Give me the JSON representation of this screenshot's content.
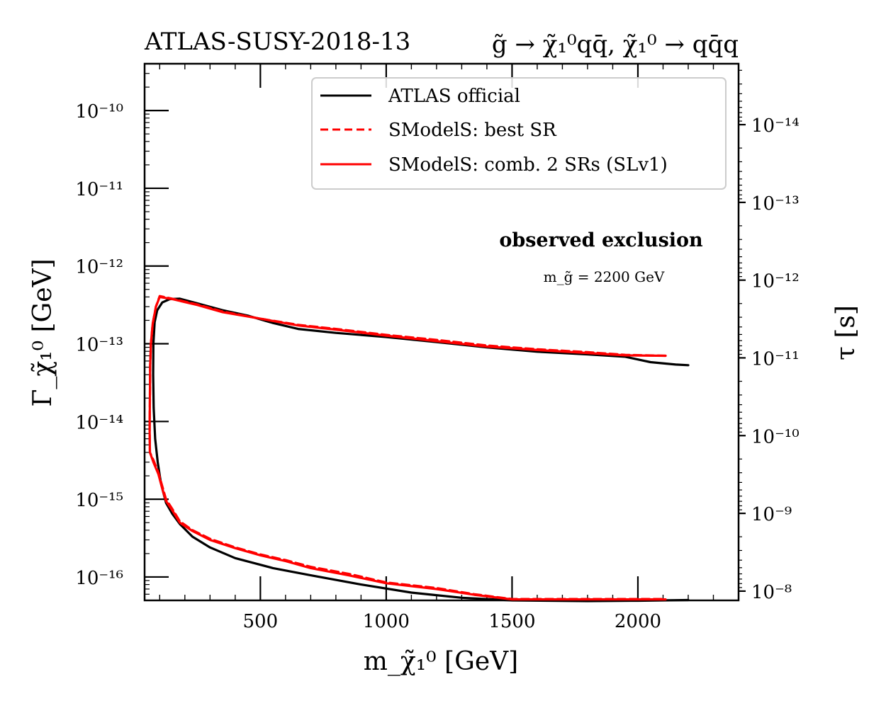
{
  "chart_data": {
    "type": "line",
    "title_left": "ATLAS-SUSY-2018-13",
    "title_right": "g̃ → χ̃₁⁰qq̄, χ̃₁⁰ → qq̄q",
    "xlabel": "m_χ̃₁⁰ [GeV]",
    "ylabel": "Γ_χ̃₁⁰ [GeV]",
    "ylabel_right": "τ [s]",
    "xlim": [
      40,
      2400
    ],
    "ylim": [
      5e-17,
      4e-10
    ],
    "yscale": "log",
    "x_ticks": [
      500,
      1000,
      1500,
      2000
    ],
    "x_tick_labels": [
      "500",
      "1000",
      "1500",
      "2000"
    ],
    "y_ticks_left": [
      1e-16,
      1e-15,
      1e-14,
      1e-13,
      1e-12,
      1e-11,
      1e-10
    ],
    "y_tick_labels_left": [
      "10⁻¹⁶",
      "10⁻¹⁵",
      "10⁻¹⁴",
      "10⁻¹³",
      "10⁻¹²",
      "10⁻¹¹",
      "10⁻¹⁰"
    ],
    "y_ticks_right_tau": [
      1e-08,
      1e-09,
      1e-10,
      1e-11,
      1e-12,
      1e-13,
      1e-14
    ],
    "y_tick_labels_right": [
      "10⁻⁸",
      "10⁻⁹",
      "10⁻¹⁰",
      "10⁻¹¹",
      "10⁻¹²",
      "10⁻¹³",
      "10⁻¹⁴"
    ],
    "hbar_GeV_s": 6.582e-25,
    "annotation_bold": "observed exclusion",
    "annotation_small": "m_g̃ = 2200 GeV",
    "legend_position": "top-right",
    "grid": false,
    "series": [
      {
        "name": "ATLAS official",
        "color": "#000000",
        "dash": "solid",
        "points": [
          [
            2200,
            5.3e-14
          ],
          [
            2150,
            5.4e-14
          ],
          [
            2050,
            5.8e-14
          ],
          [
            1950,
            6.8e-14
          ],
          [
            1800,
            7.3e-14
          ],
          [
            1600,
            7.9e-14
          ],
          [
            1400,
            9e-14
          ],
          [
            1200,
            1.05e-13
          ],
          [
            1000,
            1.22e-13
          ],
          [
            800,
            1.38e-13
          ],
          [
            650,
            1.55e-13
          ],
          [
            550,
            1.85e-13
          ],
          [
            450,
            2.3e-13
          ],
          [
            350,
            2.7e-13
          ],
          [
            250,
            3.3e-13
          ],
          [
            180,
            3.8e-13
          ],
          [
            140,
            3.75e-13
          ],
          [
            110,
            3.4e-13
          ],
          [
            90,
            2.7e-13
          ],
          [
            80,
            1.9e-13
          ],
          [
            75,
            1e-13
          ],
          [
            74,
            4e-14
          ],
          [
            76,
            1.5e-14
          ],
          [
            82,
            6e-15
          ],
          [
            92,
            3e-15
          ],
          [
            105,
            1.6e-15
          ],
          [
            125,
            9e-16
          ],
          [
            150,
            6.5e-16
          ],
          [
            180,
            4.8e-16
          ],
          [
            230,
            3.3e-16
          ],
          [
            300,
            2.4e-16
          ],
          [
            400,
            1.75e-16
          ],
          [
            550,
            1.3e-16
          ],
          [
            700,
            1.05e-16
          ],
          [
            900,
            8e-17
          ],
          [
            1100,
            6.3e-17
          ],
          [
            1300,
            5.4e-17
          ],
          [
            1500,
            5e-17
          ],
          [
            1800,
            4.9e-17
          ],
          [
            2000,
            4.95e-17
          ],
          [
            2200,
            5.05e-17
          ]
        ]
      },
      {
        "name": "SModelS: best SR",
        "color": "#ff0000",
        "dash": "dashed",
        "points": [
          [
            2110,
            7e-14
          ],
          [
            1950,
            7.2e-14
          ],
          [
            1800,
            7.8e-14
          ],
          [
            1600,
            8.5e-14
          ],
          [
            1400,
            9.5e-14
          ],
          [
            1200,
            1.12e-13
          ],
          [
            1000,
            1.3e-13
          ],
          [
            800,
            1.55e-13
          ],
          [
            650,
            1.75e-13
          ],
          [
            500,
            2.1e-13
          ],
          [
            350,
            2.6e-13
          ],
          [
            250,
            3.2e-13
          ],
          [
            150,
            3.8e-13
          ],
          [
            100,
            4.1e-13
          ],
          [
            85,
            3e-13
          ],
          [
            72,
            1.8e-13
          ],
          [
            65,
            1e-13
          ],
          [
            62,
            5e-14
          ],
          [
            61,
            2e-14
          ],
          [
            60,
            8e-15
          ],
          [
            61,
            4e-15
          ],
          [
            75,
            3.2e-15
          ],
          [
            95,
            2.2e-15
          ],
          [
            112,
            1.4e-15
          ],
          [
            125,
            1e-15
          ],
          [
            150,
            7.5e-16
          ],
          [
            180,
            5.2e-16
          ],
          [
            230,
            4e-16
          ],
          [
            300,
            3.1e-16
          ],
          [
            400,
            2.4e-16
          ],
          [
            500,
            1.95e-16
          ],
          [
            600,
            1.65e-16
          ],
          [
            700,
            1.35e-16
          ],
          [
            850,
            1.1e-16
          ],
          [
            1000,
            8.5e-17
          ],
          [
            1200,
            7.2e-17
          ],
          [
            1350,
            6e-17
          ],
          [
            1500,
            5.2e-17
          ],
          [
            1800,
            5.2e-17
          ],
          [
            2110,
            5.2e-17
          ]
        ]
      },
      {
        "name": "SModelS: comb. 2 SRs (SLv1)",
        "color": "#ff0000",
        "dash": "solid",
        "points": [
          [
            2110,
            7e-14
          ],
          [
            1950,
            7.1e-14
          ],
          [
            1800,
            7.6e-14
          ],
          [
            1600,
            8.3e-14
          ],
          [
            1400,
            9.2e-14
          ],
          [
            1200,
            1.08e-13
          ],
          [
            1000,
            1.27e-13
          ],
          [
            800,
            1.52e-13
          ],
          [
            650,
            1.72e-13
          ],
          [
            500,
            2.1e-13
          ],
          [
            350,
            2.55e-13
          ],
          [
            250,
            3.15e-13
          ],
          [
            150,
            3.75e-13
          ],
          [
            100,
            4e-13
          ],
          [
            85,
            3e-13
          ],
          [
            72,
            1.8e-13
          ],
          [
            65,
            1e-13
          ],
          [
            62,
            5e-14
          ],
          [
            61,
            2e-14
          ],
          [
            60,
            8e-15
          ],
          [
            61,
            4e-15
          ],
          [
            75,
            3e-15
          ],
          [
            95,
            2.1e-15
          ],
          [
            112,
            1.3e-15
          ],
          [
            125,
            9.5e-16
          ],
          [
            150,
            7.2e-16
          ],
          [
            180,
            5e-16
          ],
          [
            230,
            3.9e-16
          ],
          [
            300,
            3e-16
          ],
          [
            400,
            2.35e-16
          ],
          [
            500,
            1.9e-16
          ],
          [
            600,
            1.6e-16
          ],
          [
            700,
            1.3e-16
          ],
          [
            850,
            1.05e-16
          ],
          [
            1000,
            8.3e-17
          ],
          [
            1200,
            7e-17
          ],
          [
            1350,
            5.9e-17
          ],
          [
            1500,
            5.15e-17
          ],
          [
            1800,
            5.15e-17
          ],
          [
            2110,
            5.15e-17
          ]
        ]
      }
    ]
  }
}
